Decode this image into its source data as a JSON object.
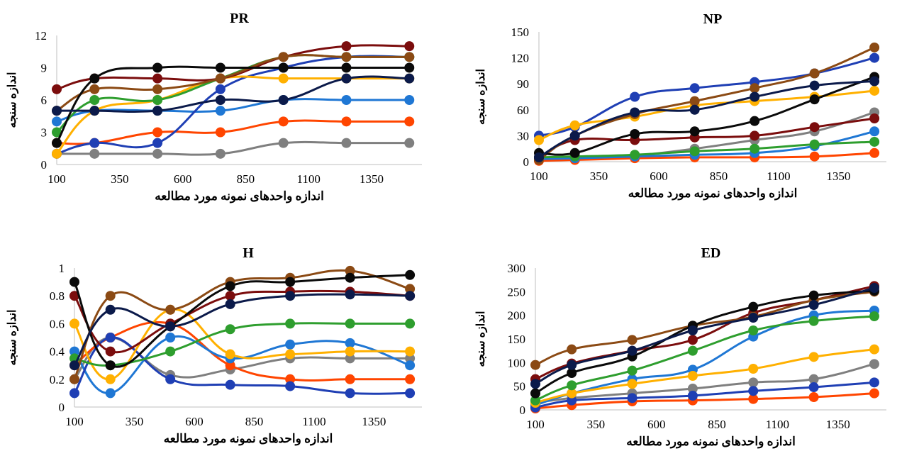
{
  "chart_data": [
    {
      "type": "line",
      "title": "PR",
      "xlabel": "اندازه واحدهای نمونه مورد مطالعه",
      "ylabel": "اندازه سنجه",
      "x": [
        100,
        250,
        500,
        750,
        1000,
        1250,
        1500
      ],
      "xticks": [
        100,
        350,
        600,
        850,
        1100,
        1350
      ],
      "xlim": [
        100,
        1550
      ],
      "yticks": [
        0,
        3,
        6,
        9,
        12
      ],
      "ylim": [
        0,
        12
      ],
      "series": [
        {
          "color": "#7f7f7f",
          "values": [
            1,
            1,
            1,
            1,
            2,
            2,
            2
          ]
        },
        {
          "color": "#ff4500",
          "values": [
            2,
            2,
            3,
            3,
            4,
            4,
            4
          ]
        },
        {
          "color": "#1f77d4",
          "values": [
            4,
            5,
            5,
            5,
            6,
            6,
            6
          ]
        },
        {
          "color": "#1f3fb4",
          "values": [
            1,
            2,
            2,
            7,
            9,
            10,
            10
          ]
        },
        {
          "color": "#ffb000",
          "values": [
            1,
            5,
            6,
            8,
            8,
            8,
            8
          ]
        },
        {
          "color": "#2e9e2e",
          "values": [
            3,
            6,
            6,
            8,
            10,
            10,
            10
          ]
        },
        {
          "color": "#7b0d0d",
          "values": [
            7,
            8,
            8,
            8,
            10,
            11,
            11
          ]
        },
        {
          "color": "#8b4a14",
          "values": [
            5,
            7,
            7,
            8,
            10,
            10,
            10
          ]
        },
        {
          "color": "#0a0a0a",
          "values": [
            2,
            8,
            9,
            9,
            9,
            9,
            9
          ]
        },
        {
          "color": "#0b1a4a",
          "values": [
            5,
            5,
            5,
            6,
            6,
            8,
            8
          ]
        }
      ]
    },
    {
      "type": "line",
      "title": "NP",
      "xlabel": "اندازه واحدهای نمونه مورد مطالعه",
      "ylabel": "اندازه سنجه",
      "x": [
        100,
        250,
        500,
        750,
        1000,
        1250,
        1500
      ],
      "xticks": [
        100,
        350,
        600,
        850,
        1100,
        1350
      ],
      "xlim": [
        100,
        1550
      ],
      "yticks": [
        0,
        30,
        60,
        90,
        120,
        150
      ],
      "ylim": [
        0,
        150
      ],
      "series": [
        {
          "color": "#7f7f7f",
          "values": [
            2,
            3,
            7,
            15,
            25,
            35,
            57
          ]
        },
        {
          "color": "#ff4500",
          "values": [
            1,
            2,
            4,
            5,
            5,
            6,
            10
          ]
        },
        {
          "color": "#1f77d4",
          "values": [
            3,
            4,
            6,
            8,
            10,
            18,
            35
          ]
        },
        {
          "color": "#1f3fb4",
          "values": [
            30,
            40,
            75,
            85,
            92,
            102,
            120
          ]
        },
        {
          "color": "#ffb000",
          "values": [
            25,
            42,
            52,
            65,
            70,
            75,
            82
          ]
        },
        {
          "color": "#2e9e2e",
          "values": [
            5,
            6,
            8,
            12,
            15,
            20,
            23
          ]
        },
        {
          "color": "#7b0d0d",
          "values": [
            5,
            25,
            25,
            28,
            30,
            40,
            50
          ]
        },
        {
          "color": "#8b4a14",
          "values": [
            2,
            30,
            55,
            70,
            85,
            102,
            132
          ]
        },
        {
          "color": "#0a0a0a",
          "values": [
            10,
            10,
            32,
            35,
            47,
            72,
            98
          ]
        },
        {
          "color": "#0b1a4a",
          "values": [
            5,
            30,
            57,
            60,
            75,
            88,
            93
          ]
        }
      ]
    },
    {
      "type": "line",
      "title": "H",
      "xlabel": "اندازه واحدهای نمونه مورد مطالعه",
      "ylabel": "اندازه سنجه",
      "x": [
        100,
        250,
        500,
        750,
        1000,
        1250,
        1500
      ],
      "xticks": [
        100,
        350,
        600,
        850,
        1100,
        1350
      ],
      "xlim": [
        100,
        1550
      ],
      "yticks": [
        0,
        0.2,
        0.4,
        0.6,
        0.8,
        1
      ],
      "ylim": [
        0,
        1
      ],
      "series": [
        {
          "color": "#7f7f7f",
          "values": [
            0.2,
            0.5,
            0.23,
            0.27,
            0.35,
            0.35,
            0.35
          ]
        },
        {
          "color": "#ff4500",
          "values": [
            0.3,
            0.5,
            0.6,
            0.3,
            0.2,
            0.2,
            0.2
          ]
        },
        {
          "color": "#1f77d4",
          "values": [
            0.4,
            0.1,
            0.5,
            0.35,
            0.45,
            0.46,
            0.3
          ]
        },
        {
          "color": "#1f3fb4",
          "values": [
            0.1,
            0.5,
            0.2,
            0.16,
            0.15,
            0.1,
            0.1
          ]
        },
        {
          "color": "#ffb000",
          "values": [
            0.6,
            0.2,
            0.7,
            0.38,
            0.38,
            0.4,
            0.4
          ]
        },
        {
          "color": "#2e9e2e",
          "values": [
            0.35,
            0.3,
            0.4,
            0.56,
            0.6,
            0.6,
            0.6
          ]
        },
        {
          "color": "#7b0d0d",
          "values": [
            0.8,
            0.4,
            0.6,
            0.8,
            0.83,
            0.83,
            0.8
          ]
        },
        {
          "color": "#8b4a14",
          "values": [
            0.2,
            0.8,
            0.7,
            0.9,
            0.93,
            0.98,
            0.85
          ]
        },
        {
          "color": "#0a0a0a",
          "values": [
            0.9,
            0.3,
            0.58,
            0.87,
            0.9,
            0.93,
            0.95
          ]
        },
        {
          "color": "#0b1a4a",
          "values": [
            0.3,
            0.7,
            0.58,
            0.74,
            0.8,
            0.81,
            0.8
          ]
        }
      ]
    },
    {
      "type": "line",
      "title": "ED",
      "xlabel": "اندازه واحدهای نمونه مورد مطالعه",
      "ylabel": "اندازه سنجه",
      "x": [
        100,
        250,
        500,
        750,
        1000,
        1250,
        1500
      ],
      "xticks": [
        100,
        350,
        600,
        850,
        1100,
        1350
      ],
      "xlim": [
        100,
        1550
      ],
      "yticks": [
        0,
        50,
        100,
        150,
        200,
        250,
        300
      ],
      "ylim": [
        0,
        300
      ],
      "series": [
        {
          "color": "#7f7f7f",
          "values": [
            15,
            25,
            35,
            45,
            58,
            65,
            97
          ]
        },
        {
          "color": "#ff4500",
          "values": [
            3,
            10,
            18,
            20,
            23,
            27,
            35
          ]
        },
        {
          "color": "#1f77d4",
          "values": [
            10,
            35,
            65,
            85,
            155,
            200,
            210
          ]
        },
        {
          "color": "#1f3fb4",
          "values": [
            5,
            20,
            25,
            30,
            40,
            48,
            58
          ]
        },
        {
          "color": "#ffb000",
          "values": [
            15,
            35,
            55,
            72,
            87,
            112,
            128
          ]
        },
        {
          "color": "#2e9e2e",
          "values": [
            20,
            52,
            83,
            125,
            168,
            188,
            198
          ]
        },
        {
          "color": "#7b0d0d",
          "values": [
            65,
            98,
            125,
            148,
            205,
            232,
            262
          ]
        },
        {
          "color": "#8b4a14",
          "values": [
            95,
            128,
            148,
            178,
            197,
            232,
            250
          ]
        },
        {
          "color": "#0a0a0a",
          "values": [
            35,
            78,
            113,
            178,
            218,
            242,
            252
          ]
        },
        {
          "color": "#0b1a4a",
          "values": [
            55,
            95,
            125,
            168,
            195,
            222,
            258
          ]
        }
      ]
    }
  ]
}
